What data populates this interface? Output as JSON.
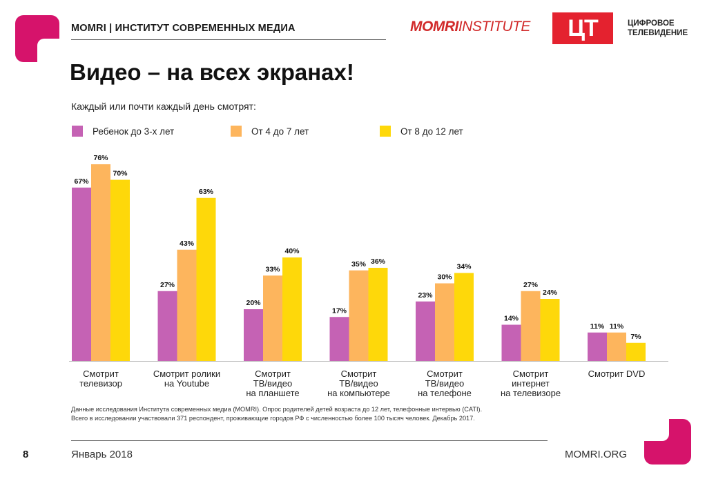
{
  "header": {
    "title": "MOMRI | ИНСТИТУТ СОВРЕМЕННЫХ МЕДИА",
    "logo_bold": "MOMRI",
    "logo_light": "INSTITUTE",
    "ct_logo": "ЦТ",
    "ct_caption_line1": "ЦИФРОВОЕ",
    "ct_caption_line2": "ТЕЛЕВИДЕНИЕ"
  },
  "page_title": "Видео – на всех экранах!",
  "subtitle": "Каждый или почти каждый день смотрят:",
  "colors": {
    "magenta": "#d6136b",
    "series_1": "#c562b4",
    "series_2": "#fdb55d",
    "series_3": "#fed80a",
    "ct_red": "#e4222f"
  },
  "chart_data": {
    "type": "bar",
    "title": "Каждый или почти каждый день смотрят:",
    "categories": [
      [
        "Смотрит",
        "телевизор"
      ],
      [
        "Смотрит ролики",
        "на Youtube"
      ],
      [
        "Смотрит",
        "ТВ/видео",
        "на планшете"
      ],
      [
        "Смотрит",
        "ТВ/видео",
        "на компьютере"
      ],
      [
        "Смотрит",
        "ТВ/видео",
        "на телефоне"
      ],
      [
        "Смотрит",
        "интернет",
        "на телевизоре"
      ],
      [
        "Смотрит DVD"
      ]
    ],
    "series": [
      {
        "name": "Ребенок до 3-х лет",
        "values": [
          67,
          27,
          20,
          17,
          23,
          14,
          11
        ]
      },
      {
        "name": "От 4 до 7 лет",
        "values": [
          76,
          43,
          33,
          35,
          30,
          27,
          11
        ]
      },
      {
        "name": "От 8 до 12 лет",
        "values": [
          70,
          63,
          40,
          36,
          34,
          24,
          7
        ]
      }
    ],
    "value_suffix": "%",
    "ylim": [
      0,
      76
    ],
    "grid": false,
    "legend": "top"
  },
  "footnote": {
    "line1": "Данные исследования Института современных медиа (MOMRI). Опрос родителей детей возраста до 12 лет, телефонные интервью (CATI).",
    "line2": "Всего в исследовании участвовали 371 респондент, проживающие городов РФ с численностью более 100 тысяч человек. Декабрь 2017."
  },
  "footer": {
    "page_number": "8",
    "date": "Январь 2018",
    "site": "MOMRI.ORG"
  }
}
